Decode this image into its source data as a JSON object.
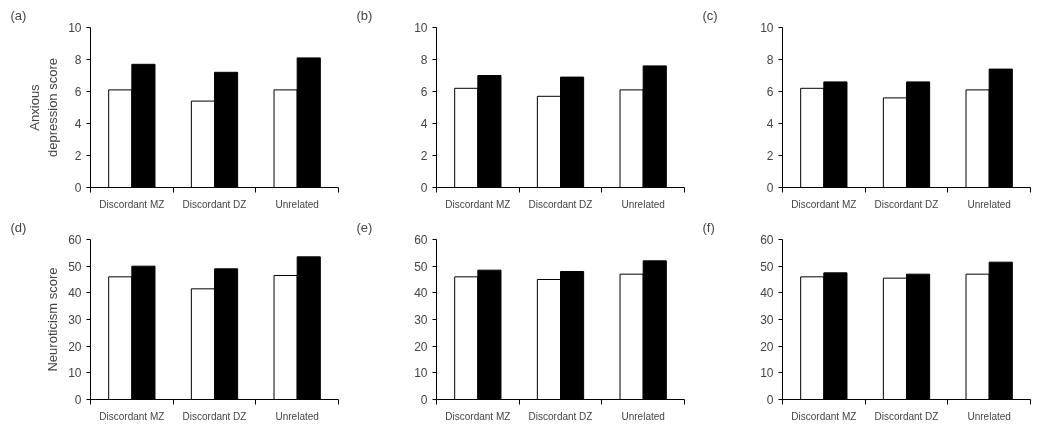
{
  "chart_data": [
    {
      "type": "bar",
      "title": "(a)",
      "ylabel": "Anxious\ndepression score",
      "categories": [
        "Discordant MZ",
        "Discordant DZ",
        "Unrelated"
      ],
      "ylim": [
        0,
        10
      ],
      "yticks": [
        0,
        2,
        4,
        6,
        8,
        10
      ],
      "grid": false,
      "series": [
        {
          "color": "#ffffff",
          "values": [
            6.1,
            5.4,
            6.1
          ]
        },
        {
          "color": "#000000",
          "values": [
            7.7,
            7.2,
            8.1
          ]
        }
      ]
    },
    {
      "type": "bar",
      "title": "(b)",
      "categories": [
        "Discordant MZ",
        "Discordant DZ",
        "Unrelated"
      ],
      "ylim": [
        0,
        10
      ],
      "yticks": [
        0,
        2,
        4,
        6,
        8,
        10
      ],
      "grid": false,
      "series": [
        {
          "color": "#ffffff",
          "values": [
            6.2,
            5.7,
            6.1
          ]
        },
        {
          "color": "#000000",
          "values": [
            7.0,
            6.9,
            7.6
          ]
        }
      ]
    },
    {
      "type": "bar",
      "title": "(c)",
      "categories": [
        "Discordant MZ",
        "Discordant DZ",
        "Unrelated"
      ],
      "ylim": [
        0,
        10
      ],
      "yticks": [
        0,
        2,
        4,
        6,
        8,
        10
      ],
      "grid": false,
      "series": [
        {
          "color": "#ffffff",
          "values": [
            6.2,
            5.6,
            6.1
          ]
        },
        {
          "color": "#000000",
          "values": [
            6.6,
            6.6,
            7.4
          ]
        }
      ]
    },
    {
      "type": "bar",
      "title": "(d)",
      "ylabel": "Neuroticism score",
      "categories": [
        "Discordant MZ",
        "Discordant DZ",
        "Unrelated"
      ],
      "ylim": [
        0,
        60
      ],
      "yticks": [
        0,
        10,
        20,
        30,
        40,
        50,
        60
      ],
      "grid": false,
      "series": [
        {
          "color": "#ffffff",
          "values": [
            46,
            41.5,
            46.5
          ]
        },
        {
          "color": "#000000",
          "values": [
            50,
            49,
            53.5
          ]
        }
      ]
    },
    {
      "type": "bar",
      "title": "(e)",
      "categories": [
        "Discordant MZ",
        "Discordant DZ",
        "Unrelated"
      ],
      "ylim": [
        0,
        60
      ],
      "yticks": [
        0,
        10,
        20,
        30,
        40,
        50,
        60
      ],
      "grid": false,
      "series": [
        {
          "color": "#ffffff",
          "values": [
            46,
            45,
            47
          ]
        },
        {
          "color": "#000000",
          "values": [
            48.5,
            48,
            52
          ]
        }
      ]
    },
    {
      "type": "bar",
      "title": "(f)",
      "categories": [
        "Discordant MZ",
        "Discordant DZ",
        "Unrelated"
      ],
      "ylim": [
        0,
        60
      ],
      "yticks": [
        0,
        10,
        20,
        30,
        40,
        50,
        60
      ],
      "grid": false,
      "series": [
        {
          "color": "#ffffff",
          "values": [
            46,
            45.5,
            47
          ]
        },
        {
          "color": "#000000",
          "values": [
            47.5,
            47,
            51.5
          ]
        }
      ]
    }
  ]
}
